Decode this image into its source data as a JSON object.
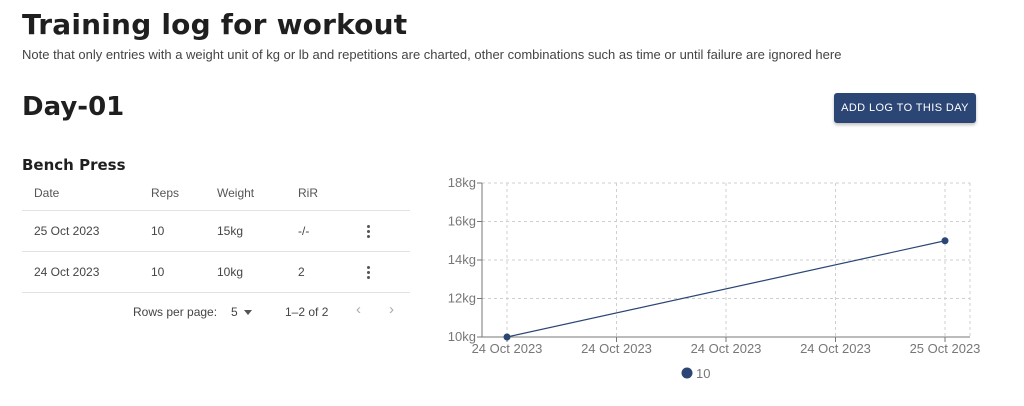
{
  "page": {
    "title": "Training log for workout",
    "subtitle": "Note that only entries with a weight unit of kg or lb and repetitions are charted, other combinations such as time or until failure are ignored here"
  },
  "day": {
    "title": "Day-01",
    "add_button_label": "ADD LOG TO THIS DAY"
  },
  "exercise": {
    "title": "Bench Press",
    "table": {
      "headers": {
        "date": "Date",
        "reps": "Reps",
        "weight": "Weight",
        "rir": "RiR"
      },
      "rows": [
        {
          "date": "25 Oct 2023",
          "reps": "10",
          "weight": "15kg",
          "rir": "-/-"
        },
        {
          "date": "24 Oct 2023",
          "reps": "10",
          "weight": "10kg",
          "rir": "2"
        }
      ],
      "icons": {
        "row_menu": "more-vert-icon"
      }
    },
    "pagination": {
      "rows_per_page_label": "Rows per page:",
      "rows_per_page_value": "5",
      "range_label": "1–2 of 2",
      "prev_icon": "chevron-left-icon",
      "next_icon": "chevron-right-icon"
    }
  },
  "colors": {
    "accent": "#2b4574",
    "grid": "#cfcfcf"
  },
  "chart_data": {
    "type": "line",
    "x_tick_labels": [
      "24 Oct 2023",
      "24 Oct 2023",
      "24 Oct 2023",
      "24 Oct 2023",
      "25 Oct 2023"
    ],
    "y_tick_labels": [
      "10kg",
      "12kg",
      "14kg",
      "16kg",
      "18kg"
    ],
    "ylim": [
      10,
      18
    ],
    "x_domain": [
      "2023-10-24",
      "2023-10-25"
    ],
    "grid": true,
    "legend_position": "bottom",
    "series": [
      {
        "name": "10",
        "color": "#2b4574",
        "points": [
          {
            "x": "2023-10-24",
            "y": 10
          },
          {
            "x": "2023-10-25",
            "y": 15
          }
        ]
      }
    ]
  }
}
